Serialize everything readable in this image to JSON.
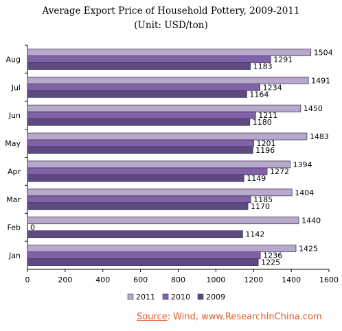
{
  "chart_data": {
    "type": "bar",
    "orientation": "horizontal",
    "title": "Average Export Price of Household Pottery, 2009-2011",
    "subtitle": "(Unit: USD/ton)",
    "categories": [
      "Jan",
      "Feb",
      "Mar",
      "Apr",
      "May",
      "Jun",
      "Jul",
      "Aug"
    ],
    "series": [
      {
        "name": "2011",
        "color": "#b6a9cc",
        "values": [
          1425,
          1440,
          1404,
          1394,
          1483,
          1450,
          1491,
          1504
        ]
      },
      {
        "name": "2010",
        "color": "#8062a8",
        "values": [
          1236,
          0,
          1185,
          1272,
          1201,
          1211,
          1234,
          1291
        ]
      },
      {
        "name": "2009",
        "color": "#5e4a82",
        "values": [
          1225,
          1142,
          1170,
          1149,
          1196,
          1180,
          1164,
          1183
        ]
      }
    ],
    "xlim": [
      0,
      1600
    ],
    "xticks": [
      0,
      200,
      400,
      600,
      800,
      1000,
      1200,
      1400,
      1600
    ],
    "grid": false,
    "legend_position": "bottom"
  },
  "source": {
    "label": "Source",
    "text": ": Wind, www.ResearchInChina.com"
  }
}
